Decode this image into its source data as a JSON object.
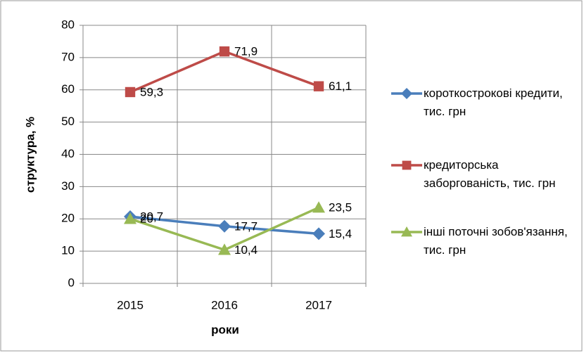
{
  "chart_data": {
    "type": "line",
    "categories": [
      "2015",
      "2016",
      "2017"
    ],
    "series": [
      {
        "name": "короткострокові кредити, тис. грн",
        "color": "#4a7ebb",
        "marker": "diamond",
        "values": [
          20.7,
          17.7,
          15.4
        ],
        "value_labels": [
          "20,7",
          "17,7",
          "15,4"
        ]
      },
      {
        "name": "кредиторська заборгованість, тис. грн",
        "color": "#be4b48",
        "marker": "square",
        "values": [
          59.3,
          71.9,
          61.1
        ],
        "value_labels": [
          "59,3",
          "71,9",
          "61,1"
        ]
      },
      {
        "name": "інші поточні зобов'язання, тис. грн",
        "color": "#98b954",
        "marker": "triangle",
        "values": [
          20,
          10.4,
          23.5
        ],
        "value_labels": [
          "20",
          "10,4",
          "23,5"
        ]
      }
    ],
    "ylim": [
      0,
      80
    ],
    "yticks": [
      0,
      10,
      20,
      30,
      40,
      50,
      60,
      70,
      80
    ],
    "xlabel": "роки",
    "ylabel": "структура, %",
    "grid": true,
    "legend": "right"
  }
}
